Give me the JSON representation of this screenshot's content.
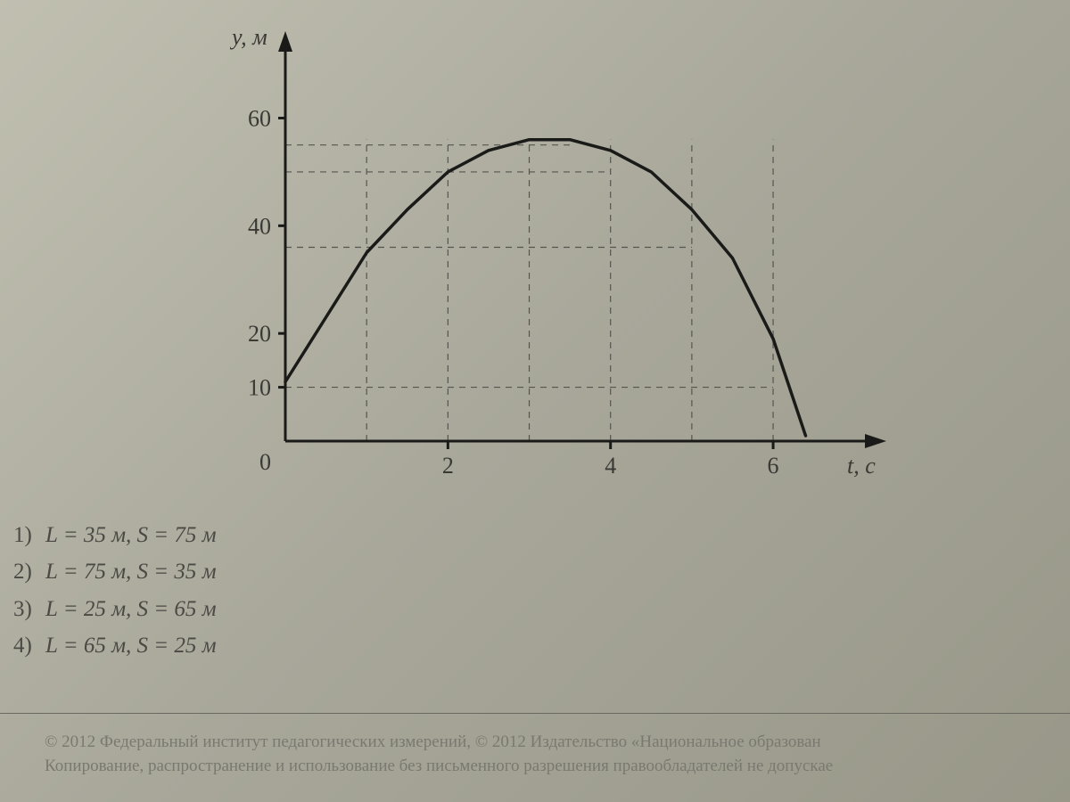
{
  "chart": {
    "type": "line",
    "y_axis_label": "y, м",
    "x_axis_label": "t, с",
    "y_ticks": [
      0,
      10,
      20,
      40,
      60
    ],
    "y_tick_labels": [
      "0",
      "10",
      "20",
      "40",
      "60"
    ],
    "x_ticks": [
      2,
      4,
      6
    ],
    "x_tick_labels": [
      "2",
      "4",
      "6"
    ],
    "xlim": [
      0,
      6.8
    ],
    "ylim": [
      0,
      72
    ],
    "curve_points": [
      [
        0,
        11
      ],
      [
        0.5,
        23
      ],
      [
        1,
        35
      ],
      [
        1.5,
        43
      ],
      [
        2,
        50
      ],
      [
        2.5,
        54
      ],
      [
        3,
        56
      ],
      [
        3.5,
        56
      ],
      [
        4,
        54
      ],
      [
        4.5,
        50
      ],
      [
        5,
        43
      ],
      [
        5.5,
        34
      ],
      [
        6,
        19
      ],
      [
        6.4,
        1
      ]
    ],
    "guide_lines": {
      "horizontal": [
        10,
        36,
        50,
        55
      ],
      "vertical": [
        1,
        2,
        3,
        4,
        5,
        6
      ]
    },
    "axis_color": "#1a1a18",
    "curve_color": "#1a1a18",
    "guide_color": "#555550",
    "background_color": "transparent",
    "axis_width": 3,
    "curve_width": 3.5,
    "label_fontsize": 26,
    "tick_fontsize": 26
  },
  "answers": [
    {
      "num": "1)",
      "L": "35",
      "S": "75"
    },
    {
      "num": "2)",
      "L": "75",
      "S": "35"
    },
    {
      "num": "3)",
      "L": "25",
      "S": "65"
    },
    {
      "num": "4)",
      "L": "65",
      "S": "25"
    }
  ],
  "answer_unit": "м",
  "copyright": {
    "line1": "© 2012 Федеральный институт педагогических измерений, © 2012 Издательство «Национальное образован",
    "line2": "Копирование, распространение и использование без письменного разрешения правообладателей не допускае"
  }
}
